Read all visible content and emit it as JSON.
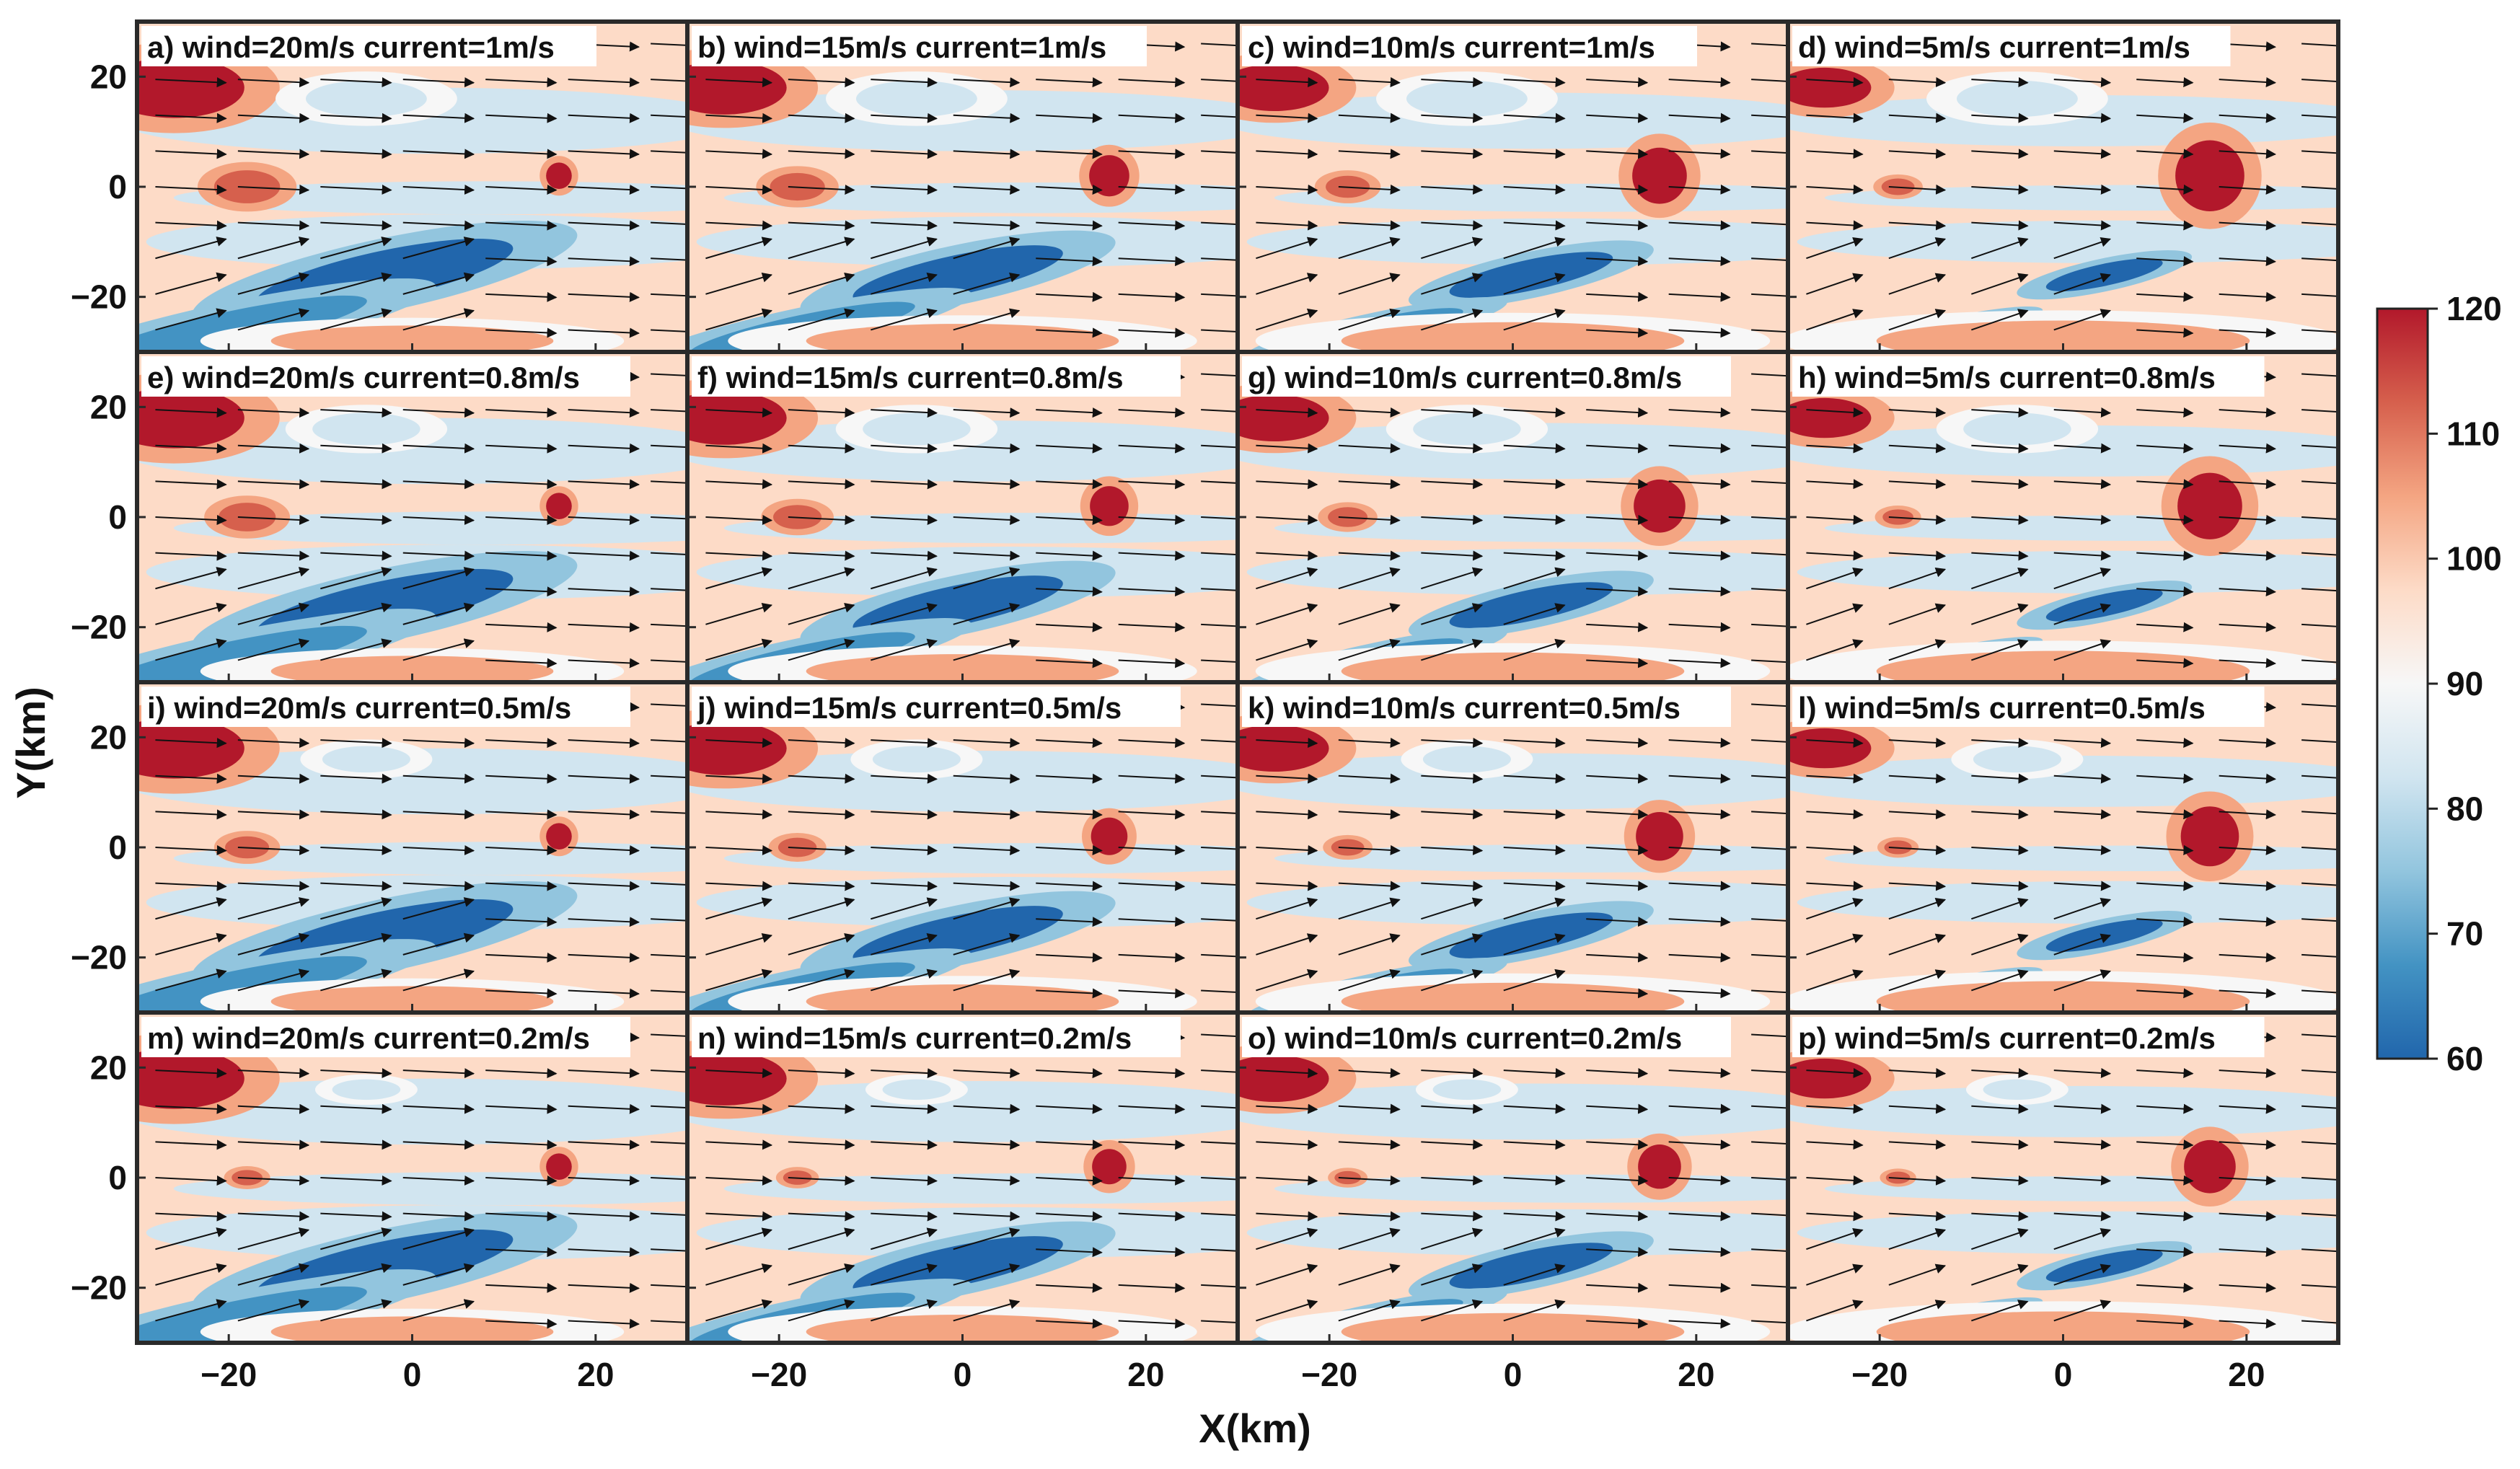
{
  "chart_data": {
    "type": "heatmap",
    "title": "",
    "xlabel": "X(km)",
    "ylabel": "Y(km)",
    "xlim": [
      -30,
      30
    ],
    "ylim": [
      -30,
      30
    ],
    "xticks": [
      -20,
      0,
      20
    ],
    "yticks": [
      20,
      0,
      -20
    ],
    "x_tick_labels": [
      "−20",
      "0",
      "20"
    ],
    "y_tick_labels": [
      "20",
      "0",
      "−20"
    ],
    "grid": false,
    "colorbar": {
      "min": 60,
      "max": 120,
      "ticks": [
        "120",
        "110",
        "100",
        "90",
        "80",
        "70",
        "60"
      ],
      "colors": [
        "#2166ac",
        "#4393c3",
        "#92c5de",
        "#d1e5f0",
        "#f7f7f7",
        "#fddbc7",
        "#f4a582",
        "#d6604d",
        "#b2182b"
      ]
    },
    "panels": [
      {
        "label": "a) wind=20m/s current=1m/s",
        "wind": 20,
        "current": 1
      },
      {
        "label": "b) wind=15m/s current=1m/s",
        "wind": 15,
        "current": 1
      },
      {
        "label": "c) wind=10m/s current=1m/s",
        "wind": 10,
        "current": 1
      },
      {
        "label": "d) wind=5m/s current=1m/s",
        "wind": 5,
        "current": 1
      },
      {
        "label": "e) wind=20m/s current=0.8m/s",
        "wind": 20,
        "current": 0.8
      },
      {
        "label": "f) wind=15m/s current=0.8m/s",
        "wind": 15,
        "current": 0.8
      },
      {
        "label": "g) wind=10m/s current=0.8m/s",
        "wind": 10,
        "current": 0.8
      },
      {
        "label": "h) wind=5m/s current=0.8m/s",
        "wind": 5,
        "current": 0.8
      },
      {
        "label": "i) wind=20m/s current=0.5m/s",
        "wind": 20,
        "current": 0.5
      },
      {
        "label": "j) wind=15m/s current=0.5m/s",
        "wind": 15,
        "current": 0.5
      },
      {
        "label": "k) wind=10m/s current=0.5m/s",
        "wind": 10,
        "current": 0.5
      },
      {
        "label": "l) wind=5m/s current=0.5m/s",
        "wind": 5,
        "current": 0.5
      },
      {
        "label": "m) wind=20m/s current=0.2m/s",
        "wind": 20,
        "current": 0.2
      },
      {
        "label": "n) wind=15m/s current=0.2m/s",
        "wind": 15,
        "current": 0.2
      },
      {
        "label": "o) wind=10m/s current=0.2m/s",
        "wind": 10,
        "current": 0.2
      },
      {
        "label": "p) wind=5m/s current=0.2m/s",
        "wind": 5,
        "current": 0.2
      }
    ],
    "features": [
      {
        "cx": -26,
        "cy": 18,
        "rx": 7,
        "ry": 5,
        "value": 116
      },
      {
        "cx": -18,
        "cy": 0,
        "rx": 3,
        "ry": 2.5,
        "value": 112
      },
      {
        "cx": -3,
        "cy": -16,
        "rx": 13,
        "ry": 4,
        "value": 64
      },
      {
        "cx": -20,
        "cy": -26,
        "rx": 14,
        "ry": 3,
        "value": 68
      },
      {
        "cx": 16,
        "cy": 2,
        "rx": 3.5,
        "ry": 6,
        "value": 114
      },
      {
        "cx": -5,
        "cy": 16,
        "rx": 6,
        "ry": 3,
        "value": 82
      },
      {
        "cx": 0,
        "cy": -28,
        "rx": 22,
        "ry": 4,
        "value": 103
      }
    ]
  }
}
